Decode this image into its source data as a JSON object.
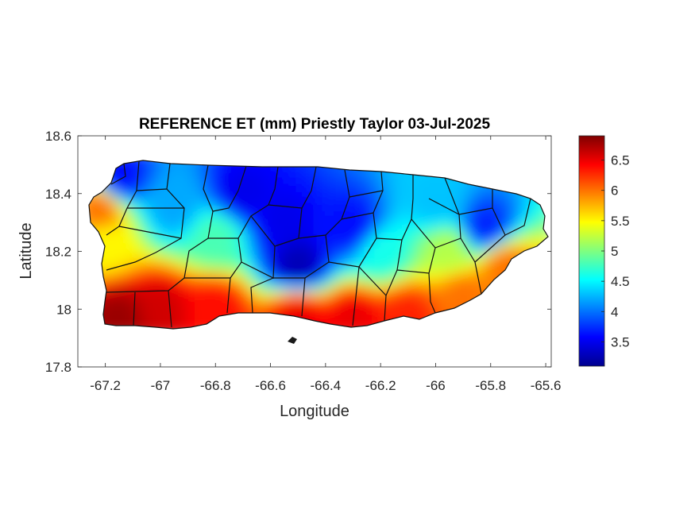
{
  "chart_data": {
    "type": "heatmap",
    "title": "REFERENCE ET (mm) Priestly Taylor 03-Jul-2025",
    "xlabel": "Longitude",
    "ylabel": "Latitude",
    "xlim": [
      -67.3,
      -65.58
    ],
    "ylim": [
      17.8,
      18.6
    ],
    "xticks": [
      -67.2,
      -67,
      -66.8,
      -66.6,
      -66.4,
      -66.2,
      -66,
      -65.8,
      -65.6
    ],
    "xtick_labels": [
      "-67.2",
      "-67",
      "-66.8",
      "-66.6",
      "-66.4",
      "-66.2",
      "-66",
      "-65.8",
      "-65.6"
    ],
    "yticks": [
      17.8,
      18,
      18.2,
      18.4,
      18.6
    ],
    "ytick_labels": [
      "17.8",
      "18",
      "18.2",
      "18.4",
      "18.6"
    ],
    "colormap": "jet",
    "colorbar": {
      "range": [
        3.1,
        6.9
      ],
      "ticks": [
        3.5,
        4,
        4.5,
        5,
        5.5,
        6,
        6.5
      ],
      "tick_labels": [
        "3.5",
        "4",
        "4.5",
        "5",
        "5.5",
        "6",
        "6.5"
      ],
      "placement": "right"
    },
    "field_description_points": [
      {
        "lon": -67.15,
        "lat": 17.97,
        "value": 6.8
      },
      {
        "lon": -67.0,
        "lat": 18.0,
        "value": 6.6
      },
      {
        "lon": -66.8,
        "lat": 18.0,
        "value": 6.4
      },
      {
        "lon": -66.5,
        "lat": 17.98,
        "value": 6.5
      },
      {
        "lon": -66.3,
        "lat": 17.97,
        "value": 6.5
      },
      {
        "lon": -66.1,
        "lat": 17.98,
        "value": 6.3
      },
      {
        "lon": -65.9,
        "lat": 18.05,
        "value": 6.0
      },
      {
        "lon": -65.75,
        "lat": 18.15,
        "value": 6.0
      },
      {
        "lon": -67.22,
        "lat": 18.35,
        "value": 6.0
      },
      {
        "lon": -67.2,
        "lat": 18.22,
        "value": 5.5
      },
      {
        "lon": -67.15,
        "lat": 18.45,
        "value": 3.6
      },
      {
        "lon": -66.95,
        "lat": 18.35,
        "value": 4.2
      },
      {
        "lon": -66.7,
        "lat": 18.4,
        "value": 3.5
      },
      {
        "lon": -66.55,
        "lat": 18.3,
        "value": 3.5
      },
      {
        "lon": -66.5,
        "lat": 18.15,
        "value": 3.3
      },
      {
        "lon": -66.3,
        "lat": 18.28,
        "value": 3.6
      },
      {
        "lon": -66.0,
        "lat": 18.37,
        "value": 4.3
      },
      {
        "lon": -65.82,
        "lat": 18.28,
        "value": 3.7
      },
      {
        "lon": -66.2,
        "lat": 18.2,
        "value": 4.6
      },
      {
        "lon": -65.95,
        "lat": 18.2,
        "value": 5.2
      },
      {
        "lon": -66.8,
        "lat": 18.25,
        "value": 4.8
      }
    ],
    "grid": false
  }
}
